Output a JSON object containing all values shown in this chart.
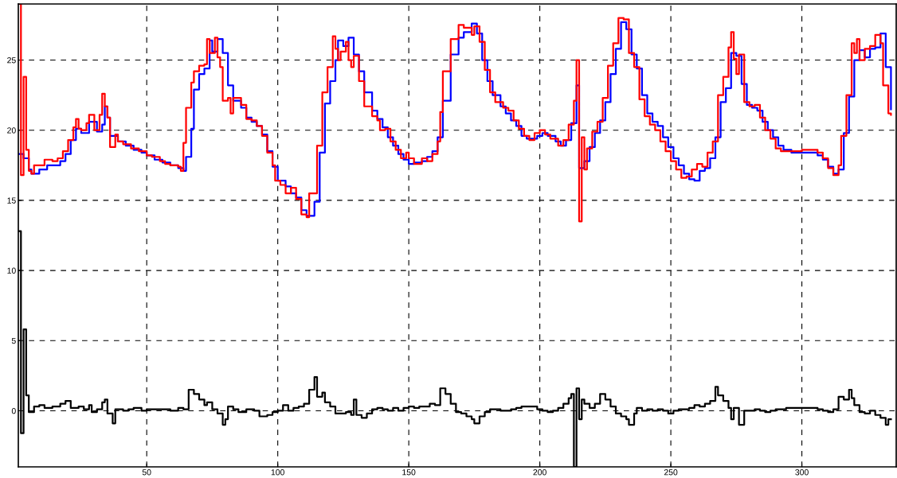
{
  "chart_data": {
    "type": "step",
    "xlim": [
      1,
      336
    ],
    "ylim": [
      -4,
      29
    ],
    "xticks": [
      50,
      100,
      150,
      200,
      250,
      300
    ],
    "yticks": [
      0,
      5,
      10,
      15,
      20,
      25
    ],
    "grid": true,
    "line_style": "solid",
    "marker": "none",
    "series": [
      {
        "color": "#0000ff",
        "x": [
          1,
          3,
          5,
          6,
          9,
          12,
          15,
          17,
          19,
          21,
          23,
          25,
          28,
          31,
          33,
          34,
          35,
          36,
          39,
          42,
          45,
          48,
          50,
          53,
          56,
          59,
          62,
          64,
          65,
          67,
          68,
          70,
          72,
          74,
          75,
          77,
          79,
          81,
          83,
          86,
          88,
          90,
          92,
          94,
          96,
          98,
          100,
          103,
          105,
          107,
          109,
          111,
          114,
          116,
          118,
          120,
          122,
          123,
          125,
          127,
          129,
          131,
          133,
          136,
          138,
          140,
          142,
          144,
          146,
          148,
          150,
          152,
          155,
          157,
          159,
          161,
          163,
          166,
          169,
          171,
          174,
          176,
          178,
          180,
          182,
          185,
          187,
          189,
          191,
          193,
          195,
          197,
          199,
          201,
          203,
          206,
          208,
          210,
          212,
          214,
          215,
          217,
          219,
          221,
          223,
          225,
          227,
          229,
          231,
          233,
          235,
          237,
          239,
          241,
          243,
          245,
          247,
          249,
          251,
          253,
          255,
          257,
          259,
          261,
          263,
          265,
          267,
          269,
          271,
          273,
          275,
          277,
          279,
          281,
          283,
          285,
          287,
          289,
          291,
          293,
          296,
          300,
          304,
          306,
          308,
          310,
          312,
          314,
          316,
          318,
          320,
          322,
          324,
          326,
          328,
          330,
          332,
          334
        ],
        "values": [
          18.3,
          18.0,
          17.2,
          16.9,
          17.2,
          17.5,
          17.5,
          17.8,
          18.3,
          19.3,
          20.1,
          19.8,
          20.6,
          19.9,
          20.4,
          21.7,
          20.9,
          19.6,
          19.2,
          18.9,
          18.6,
          18.4,
          18.2,
          17.9,
          17.7,
          17.5,
          17.3,
          17.1,
          18.1,
          20.1,
          22.9,
          24.0,
          24.4,
          26.4,
          25.6,
          26.5,
          25.5,
          23.2,
          22.1,
          21.6,
          20.9,
          20.6,
          20.3,
          19.7,
          18.5,
          17.4,
          16.4,
          16.0,
          15.5,
          15.2,
          14.3,
          13.9,
          14.9,
          18.4,
          21.9,
          23.5,
          25.0,
          26.4,
          26.0,
          26.6,
          25.4,
          24.2,
          22.7,
          21.4,
          20.8,
          20.2,
          19.5,
          18.9,
          18.3,
          17.9,
          17.6,
          17.7,
          17.8,
          18.1,
          18.5,
          19.5,
          22.1,
          25.4,
          26.6,
          27.0,
          27.6,
          26.9,
          25.0,
          23.5,
          22.5,
          21.7,
          21.2,
          20.7,
          20.3,
          19.6,
          19.4,
          19.4,
          19.6,
          19.8,
          19.6,
          19.2,
          18.9,
          19.3,
          20.5,
          23.2,
          17.3,
          17.8,
          18.8,
          19.8,
          20.7,
          22.0,
          24.0,
          25.8,
          27.7,
          27.2,
          25.4,
          24.4,
          22.5,
          21.2,
          20.6,
          20.3,
          19.5,
          18.8,
          18.0,
          17.5,
          16.9,
          16.5,
          16.4,
          17.1,
          17.3,
          18.0,
          19.5,
          22.0,
          23.0,
          25.5,
          25.3,
          23.3,
          21.8,
          21.6,
          21.4,
          20.6,
          20.0,
          19.5,
          18.9,
          18.6,
          18.4,
          18.4,
          18.4,
          18.2,
          17.9,
          17.4,
          16.9,
          17.2,
          19.8,
          22.4,
          25.0,
          25.7,
          25.2,
          25.8,
          25.9,
          26.9,
          24.5,
          21.5
        ]
      },
      {
        "color": "#ff0000",
        "x": [
          1,
          2,
          3,
          4,
          5,
          6,
          7,
          9,
          11,
          14,
          16,
          18,
          20,
          22,
          23,
          24,
          25,
          27,
          28,
          30,
          32,
          33,
          34,
          35,
          36,
          38,
          39,
          41,
          44,
          47,
          50,
          52,
          55,
          57,
          59,
          62,
          63,
          64,
          65,
          67,
          68,
          70,
          72,
          73,
          74,
          76,
          77,
          78,
          79,
          81,
          82,
          83,
          86,
          88,
          90,
          92,
          94,
          96,
          98,
          99,
          101,
          103,
          105,
          107,
          109,
          111,
          112,
          115,
          117,
          119,
          121,
          122,
          123,
          124,
          126,
          127,
          128,
          129,
          131,
          133,
          136,
          138,
          139,
          141,
          143,
          145,
          147,
          149,
          150,
          152,
          155,
          157,
          159,
          161,
          162,
          163,
          166,
          169,
          171,
          174,
          175,
          177,
          179,
          181,
          183,
          186,
          188,
          190,
          192,
          194,
          196,
          198,
          200,
          202,
          204,
          207,
          209,
          211,
          213,
          214,
          215,
          216,
          217,
          218,
          220,
          222,
          224,
          226,
          228,
          230,
          232,
          234,
          236,
          238,
          240,
          242,
          244,
          246,
          248,
          250,
          252,
          254,
          256,
          258,
          260,
          262,
          264,
          266,
          268,
          270,
          272,
          273,
          274,
          275,
          276,
          278,
          280,
          282,
          284,
          286,
          288,
          290,
          292,
          296,
          300,
          304,
          306,
          308,
          310,
          312,
          314,
          315,
          317,
          319,
          320,
          321,
          322,
          324,
          326,
          328,
          330,
          331,
          333,
          334
        ],
        "values": [
          29,
          16.8,
          23.8,
          18.6,
          17.1,
          16.9,
          17.5,
          17.5,
          17.9,
          17.8,
          18.0,
          18.5,
          19.3,
          20.2,
          20.8,
          20.1,
          20.0,
          20.5,
          21.1,
          20.0,
          21.1,
          22.6,
          21.7,
          20.9,
          18.8,
          19.7,
          19.2,
          19.0,
          18.7,
          18.5,
          18.2,
          18.1,
          17.8,
          17.6,
          17.5,
          17.4,
          17.1,
          19.1,
          21.6,
          23.4,
          24.2,
          24.6,
          24.7,
          26.5,
          25.5,
          26.6,
          25.2,
          24.5,
          22.1,
          22.3,
          21.2,
          22.3,
          21.8,
          20.8,
          20.7,
          20.3,
          19.6,
          18.4,
          17.5,
          16.4,
          16.1,
          15.5,
          15.9,
          15.1,
          14.0,
          13.8,
          15.5,
          18.9,
          22.7,
          24.5,
          26.7,
          25.8,
          25.0,
          25.6,
          26.3,
          25.0,
          24.5,
          25.3,
          23.5,
          21.7,
          21.0,
          20.7,
          20.0,
          20.1,
          19.2,
          18.6,
          18.0,
          18.4,
          18.0,
          17.6,
          18.0,
          17.8,
          18.3,
          19.2,
          21.3,
          24.2,
          26.5,
          27.5,
          27.3,
          26.8,
          27.4,
          26.3,
          24.3,
          22.7,
          22.0,
          21.6,
          21.4,
          20.7,
          20.1,
          19.6,
          19.3,
          19.8,
          20.0,
          19.7,
          19.4,
          18.9,
          19.3,
          20.4,
          22.1,
          25.0,
          13.5,
          19.5,
          17.2,
          18.7,
          19.9,
          20.6,
          22.3,
          24.6,
          26.2,
          28.0,
          27.9,
          25.5,
          24.5,
          22.2,
          21.0,
          20.4,
          20.0,
          19.2,
          18.5,
          17.8,
          17.2,
          16.6,
          16.7,
          17.2,
          17.6,
          17.4,
          18.4,
          19.2,
          22.5,
          23.8,
          25.9,
          27.0,
          25.1,
          24.0,
          25.4,
          22.0,
          21.7,
          21.8,
          20.9,
          20.0,
          19.4,
          18.7,
          18.5,
          18.5,
          18.6,
          18.6,
          18.4,
          18.0,
          17.3,
          16.8,
          17.5,
          19.6,
          22.5,
          26.2,
          25.5,
          26.5,
          25.0,
          25.8,
          26.0,
          26.8,
          26.2,
          23.2,
          21.2,
          21.1
        ]
      },
      {
        "color": "#000000",
        "x": [
          1,
          2,
          3,
          4,
          5,
          7,
          9,
          11,
          14,
          17,
          19,
          21,
          24,
          26,
          28,
          29,
          31,
          33,
          34,
          35,
          37,
          38,
          41,
          43,
          45,
          48,
          50,
          53,
          56,
          59,
          62,
          64,
          66,
          68,
          70,
          72,
          73,
          75,
          77,
          79,
          80,
          81,
          83,
          85,
          88,
          91,
          93,
          96,
          98,
          100,
          102,
          104,
          106,
          108,
          110,
          112,
          114,
          115,
          117,
          118,
          120,
          122,
          124,
          126,
          128,
          129,
          130,
          132,
          134,
          136,
          138,
          140,
          142,
          144,
          146,
          148,
          150,
          152,
          154,
          156,
          158,
          160,
          162,
          164,
          166,
          168,
          170,
          172,
          174,
          175,
          177,
          179,
          181,
          183,
          185,
          187,
          189,
          191,
          193,
          195,
          197,
          199,
          201,
          203,
          205,
          207,
          209,
          211,
          212,
          213,
          214,
          215,
          216,
          217,
          219,
          221,
          223,
          225,
          227,
          229,
          231,
          233,
          234,
          236,
          237,
          239,
          241,
          243,
          245,
          247,
          249,
          251,
          253,
          255,
          257,
          259,
          261,
          263,
          265,
          267,
          268,
          270,
          272,
          273,
          274,
          276,
          278,
          280,
          282,
          284,
          286,
          288,
          290,
          292,
          294,
          296,
          300,
          304,
          306,
          308,
          310,
          312,
          314,
          316,
          318,
          319,
          320,
          322,
          324,
          326,
          328,
          330,
          332,
          333,
          334
        ],
        "values": [
          12.8,
          -1.6,
          5.8,
          1.1,
          -0.1,
          0.3,
          0.4,
          0.2,
          0.3,
          0.5,
          0.7,
          0.2,
          0.3,
          0.1,
          0.4,
          -0.1,
          0.1,
          0.6,
          0.8,
          -0.2,
          -0.9,
          0.1,
          0,
          0.1,
          0.2,
          0,
          0.1,
          0.1,
          0.1,
          0,
          0.2,
          0.1,
          1.5,
          1.2,
          0.8,
          0.4,
          0.6,
          0.1,
          -0.2,
          -1.0,
          -0.6,
          0.3,
          0.1,
          -0.1,
          0.1,
          0,
          -0.4,
          -0.3,
          -0.1,
          0,
          0.4,
          0,
          0.2,
          0.3,
          0.5,
          1.5,
          2.4,
          1.0,
          1.3,
          0.6,
          0.3,
          -0.2,
          -0.2,
          -0.1,
          -0.3,
          0.8,
          -0.3,
          -0.5,
          -0.2,
          0.1,
          0.2,
          0.1,
          0,
          0.2,
          0,
          0.2,
          0.3,
          0.2,
          0.3,
          0.3,
          0.5,
          0.4,
          1.6,
          1.2,
          0.5,
          -0.1,
          -0.2,
          -0.4,
          -0.6,
          -0.9,
          -0.4,
          -0.1,
          0.1,
          0.1,
          0,
          0,
          0.1,
          0.2,
          0.3,
          0.3,
          0.3,
          0.1,
          0,
          -0.1,
          0,
          0.2,
          0.5,
          0.9,
          1.2,
          -4,
          1.6,
          -0.6,
          0.8,
          0.5,
          0.2,
          0.5,
          1.2,
          0.8,
          0.3,
          -0.2,
          -0.4,
          -0.6,
          -1.0,
          -0.2,
          0.2,
          0,
          0.1,
          0,
          0.1,
          0,
          -0.2,
          0,
          0.1,
          0.1,
          0.2,
          0.4,
          0.3,
          0.5,
          0.7,
          1.7,
          1.1,
          0.7,
          0.2,
          -0.6,
          0.2,
          -1.0,
          0,
          0,
          0.1,
          0,
          -0.1,
          0,
          0.1,
          0.1,
          0.2,
          0.2,
          0.2,
          0.2,
          0.1,
          0,
          -0.1,
          0.1,
          1.0,
          0.8,
          1.5,
          0.9,
          0.4,
          -0.1,
          -0.2,
          0,
          -0.3,
          -0.5,
          -1.0,
          -0.6,
          -0.6
        ]
      }
    ]
  }
}
